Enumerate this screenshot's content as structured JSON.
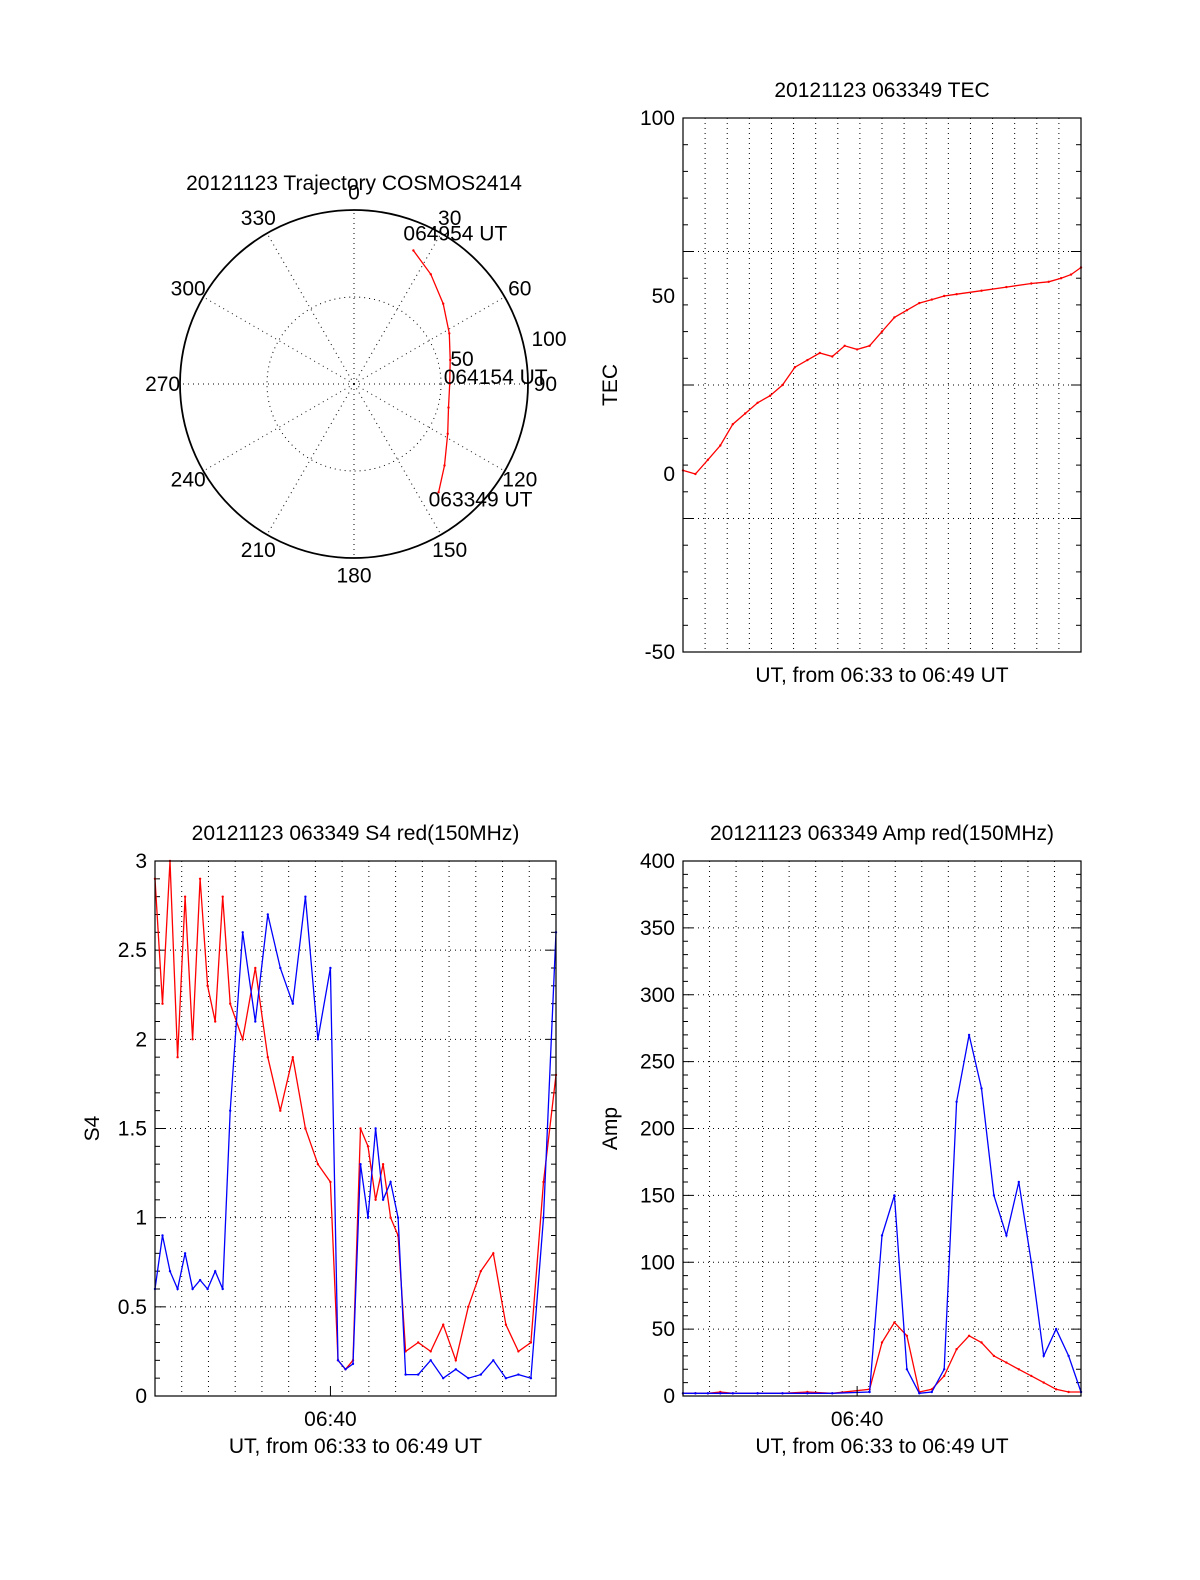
{
  "colors": {
    "red": "#ff0000",
    "blue": "#0000ff",
    "axis": "#000000",
    "background": "#ffffff"
  },
  "chart_data": [
    {
      "id": "polar",
      "type": "scatter",
      "projection": "polar",
      "title": "20121123 Trajectory COSMOS2414",
      "angle_labels": [
        "0",
        "30",
        "60",
        "90",
        "120",
        "150",
        "180",
        "210",
        "240",
        "270",
        "300",
        "330"
      ],
      "radial_labels": [
        "50",
        "100"
      ],
      "radial_range": [
        0,
        100
      ],
      "grid": true,
      "series": [
        {
          "color": "#ff0000",
          "points": [
            {
              "azimuth": 24,
              "radius": 84
            },
            {
              "azimuth": 35,
              "radius": 77
            },
            {
              "azimuth": 48,
              "radius": 69
            },
            {
              "azimuth": 62,
              "radius": 62
            },
            {
              "azimuth": 76,
              "radius": 57
            },
            {
              "azimuth": 90,
              "radius": 55
            },
            {
              "azimuth": 104,
              "radius": 56
            },
            {
              "azimuth": 118,
              "radius": 61
            },
            {
              "azimuth": 132,
              "radius": 70
            },
            {
              "azimuth": 142,
              "radius": 79
            }
          ]
        }
      ],
      "annotations": [
        "064954 UT",
        "064154 UT",
        "063349 UT"
      ]
    },
    {
      "id": "tec",
      "type": "line",
      "title": "20121123 063349 TEC",
      "xlabel": "UT, from 06:33 to 06:49 UT",
      "ylabel": "TEC",
      "xlim": [
        0,
        16
      ],
      "ylim": [
        -50,
        100
      ],
      "yticks": [
        "-50",
        "0",
        "50",
        "100"
      ],
      "xticks": [],
      "grid": true,
      "series": [
        {
          "color": "#ff0000",
          "x": [
            0.0,
            0.5,
            1.0,
            1.5,
            2.0,
            2.5,
            3.0,
            3.5,
            4.0,
            4.5,
            5.0,
            5.5,
            6.0,
            6.5,
            7.0,
            7.5,
            8.0,
            8.5,
            9.0,
            9.5,
            10.0,
            10.5,
            11.0,
            12.0,
            13.0,
            14.0,
            14.7,
            15.2,
            15.6,
            16.0
          ],
          "y": [
            1,
            0,
            4,
            8,
            14,
            17,
            20,
            22,
            25,
            30,
            32,
            34,
            33,
            36,
            35,
            36,
            40,
            44,
            46,
            48,
            49,
            50,
            50.5,
            51.5,
            52.5,
            53.5,
            54,
            55,
            56,
            58
          ]
        }
      ]
    },
    {
      "id": "s4",
      "type": "line",
      "title": "20121123 063349 S4 red(150MHz)",
      "xlabel": "UT, from 06:33 to 06:49 UT",
      "ylabel": "S4",
      "xlim": [
        0,
        16
      ],
      "ylim": [
        0,
        3
      ],
      "yticks": [
        "0",
        "0.5",
        "1",
        "1.5",
        "2",
        "2.5",
        "3"
      ],
      "xticks": [
        {
          "x": 7,
          "label": "06:40"
        }
      ],
      "grid": true,
      "series": [
        {
          "color": "#ff0000",
          "x": [
            0.0,
            0.3,
            0.6,
            0.9,
            1.2,
            1.5,
            1.8,
            2.1,
            2.4,
            2.7,
            3.0,
            3.5,
            4.0,
            4.5,
            5.0,
            5.5,
            6.0,
            6.5,
            7.0,
            7.3,
            7.6,
            7.9,
            8.2,
            8.5,
            8.8,
            9.1,
            9.4,
            9.7,
            10.0,
            10.5,
            11.0,
            11.5,
            12.0,
            12.5,
            13.0,
            13.5,
            14.0,
            14.5,
            15.0,
            15.5,
            16.0
          ],
          "y": [
            2.9,
            2.2,
            3.0,
            1.9,
            2.8,
            2.0,
            2.9,
            2.3,
            2.1,
            2.8,
            2.2,
            2.0,
            2.4,
            1.9,
            1.6,
            1.9,
            1.5,
            1.3,
            1.2,
            0.2,
            0.15,
            0.2,
            1.5,
            1.4,
            1.1,
            1.3,
            1.0,
            0.9,
            0.25,
            0.3,
            0.25,
            0.4,
            0.2,
            0.5,
            0.7,
            0.8,
            0.4,
            0.25,
            0.3,
            1.2,
            1.8
          ]
        },
        {
          "color": "#0000ff",
          "x": [
            0.0,
            0.3,
            0.6,
            0.9,
            1.2,
            1.5,
            1.8,
            2.1,
            2.4,
            2.7,
            3.0,
            3.5,
            4.0,
            4.5,
            5.0,
            5.5,
            6.0,
            6.5,
            7.0,
            7.3,
            7.6,
            7.9,
            8.2,
            8.5,
            8.8,
            9.1,
            9.4,
            9.7,
            10.0,
            10.5,
            11.0,
            11.5,
            12.0,
            12.5,
            13.0,
            13.5,
            14.0,
            14.5,
            15.0,
            15.5,
            16.0
          ],
          "y": [
            0.6,
            0.9,
            0.7,
            0.6,
            0.8,
            0.6,
            0.65,
            0.6,
            0.7,
            0.6,
            1.6,
            2.6,
            2.1,
            2.7,
            2.4,
            2.2,
            2.8,
            2.0,
            2.4,
            0.2,
            0.15,
            0.18,
            1.3,
            1.0,
            1.5,
            1.1,
            1.2,
            1.0,
            0.12,
            0.12,
            0.2,
            0.1,
            0.15,
            0.1,
            0.12,
            0.2,
            0.1,
            0.12,
            0.1,
            1.0,
            2.6
          ]
        }
      ]
    },
    {
      "id": "amp",
      "type": "line",
      "title": "20121123 063349 Amp red(150MHz)",
      "xlabel": "UT, from 06:33 to 06:49 UT",
      "ylabel": "Amp",
      "xlim": [
        0,
        16
      ],
      "ylim": [
        0,
        400
      ],
      "yticks": [
        "0",
        "50",
        "100",
        "150",
        "200",
        "250",
        "300",
        "350",
        "400"
      ],
      "xticks": [
        {
          "x": 7,
          "label": "06:40"
        }
      ],
      "grid": true,
      "series": [
        {
          "color": "#ff0000",
          "x": [
            0.0,
            0.5,
            1.0,
            1.5,
            2.0,
            3.0,
            4.0,
            5.0,
            6.0,
            7.5,
            8.0,
            8.5,
            9.0,
            9.5,
            10.0,
            10.5,
            11.0,
            11.5,
            12.0,
            12.5,
            13.0,
            13.5,
            14.0,
            14.5,
            15.0,
            15.5,
            16.0
          ],
          "y": [
            2,
            2,
            2,
            3,
            2,
            2,
            2,
            3,
            2,
            5,
            40,
            55,
            45,
            3,
            5,
            15,
            35,
            45,
            40,
            30,
            25,
            20,
            15,
            10,
            5,
            3,
            3
          ]
        },
        {
          "color": "#0000ff",
          "x": [
            0.0,
            0.5,
            1.0,
            1.5,
            2.0,
            3.0,
            4.0,
            5.0,
            6.0,
            7.5,
            8.0,
            8.5,
            9.0,
            9.5,
            10.0,
            10.5,
            11.0,
            11.5,
            12.0,
            12.5,
            13.0,
            13.5,
            14.0,
            14.5,
            15.0,
            15.5,
            16.0
          ],
          "y": [
            2,
            2,
            2,
            2,
            2,
            2,
            2,
            2,
            2,
            3,
            120,
            150,
            20,
            2,
            3,
            20,
            220,
            270,
            230,
            150,
            120,
            160,
            100,
            30,
            50,
            30,
            3
          ]
        }
      ]
    }
  ]
}
